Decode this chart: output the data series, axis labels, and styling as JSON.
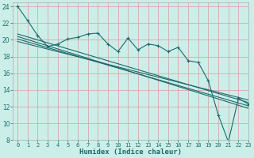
{
  "xlabel": "Humidex (Indice chaleur)",
  "xlim": [
    -0.5,
    23
  ],
  "ylim": [
    8,
    24.5
  ],
  "xticks": [
    0,
    1,
    2,
    3,
    4,
    5,
    6,
    7,
    8,
    9,
    10,
    11,
    12,
    13,
    14,
    15,
    16,
    17,
    18,
    19,
    20,
    21,
    22,
    23
  ],
  "yticks": [
    8,
    10,
    12,
    14,
    16,
    18,
    20,
    22,
    24
  ],
  "bg_color": "#cceee8",
  "grid_color": "#d4aaaa",
  "line_color": "#1a6b6b",
  "jagged_x": [
    0,
    1,
    2,
    3,
    4,
    5,
    6,
    7,
    8,
    9,
    10,
    11,
    12,
    13,
    14,
    15,
    16,
    17,
    18,
    19,
    20,
    21,
    22,
    23
  ],
  "jagged_y": [
    24,
    22.3,
    20.5,
    19.2,
    19.5,
    20.1,
    20.3,
    20.7,
    20.8,
    19.5,
    18.6,
    20.2,
    18.8,
    19.5,
    19.3,
    18.6,
    19.1,
    17.5,
    17.3,
    15.1,
    11.0,
    7.8,
    13.0,
    12.3
  ],
  "line2_x": [
    0,
    23
  ],
  "line2_y": [
    20.7,
    12.5
  ],
  "line3_x": [
    0,
    23
  ],
  "line3_y": [
    20.4,
    11.8
  ],
  "line4_x": [
    0,
    23
  ],
  "line4_y": [
    20.1,
    12.1
  ],
  "line5_x": [
    0,
    23
  ],
  "line5_y": [
    19.8,
    12.8
  ]
}
